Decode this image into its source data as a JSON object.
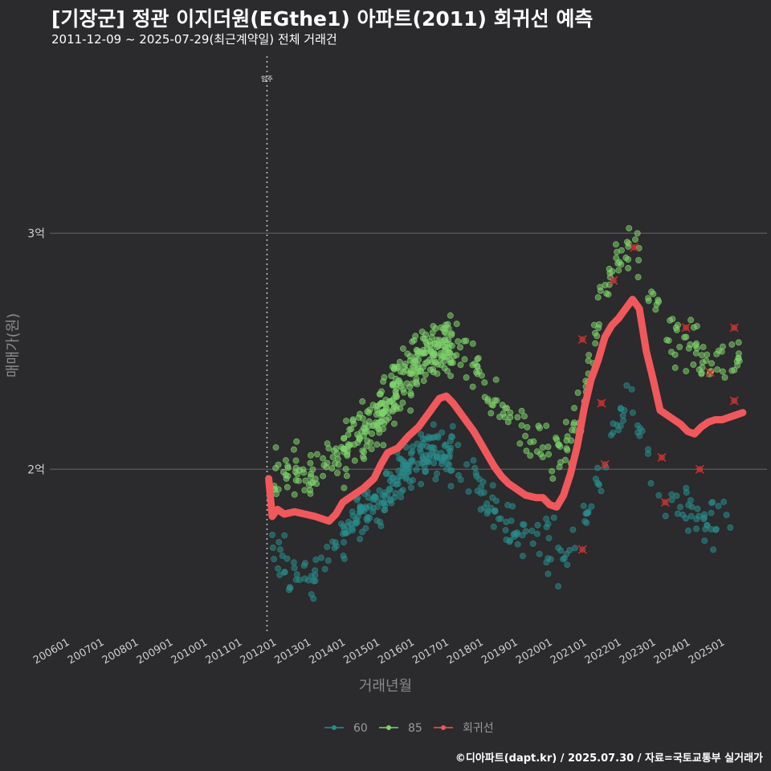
{
  "header": {
    "title": "[기장군] 정관 이지더원(EGthe1) 아파트(2011) 회귀선 예측",
    "subtitle": "2011-12-09 ~ 2025-07-29(최근계약일) 전체 거래건"
  },
  "caption": "©디아파트(dapt.kr) / 2025.07.30 / 자료=국토교통부 실거래가",
  "chart_data": {
    "type": "scatter",
    "title": "[기장군] 정관 이지더원(EGthe1) 아파트(2011) 회귀선 예측",
    "xlabel": "거래년월",
    "ylabel": "매매가(원)",
    "xlim": [
      2005.5,
      2026.3
    ],
    "ylim": [
      13.0,
      37.5
    ],
    "y_unit": "천만원",
    "y_ticks": [
      {
        "value": 20,
        "label": "2억"
      },
      {
        "value": 30,
        "label": "3억"
      }
    ],
    "x_ticks": [
      {
        "value": 2006,
        "label": "200601"
      },
      {
        "value": 2007,
        "label": "200701"
      },
      {
        "value": 2008,
        "label": "200801"
      },
      {
        "value": 2009,
        "label": "200901"
      },
      {
        "value": 2010,
        "label": "201001"
      },
      {
        "value": 2011,
        "label": "201101"
      },
      {
        "value": 2012,
        "label": "201201"
      },
      {
        "value": 2013,
        "label": "201301"
      },
      {
        "value": 2014,
        "label": "201401"
      },
      {
        "value": 2015,
        "label": "201501"
      },
      {
        "value": 2016,
        "label": "201601"
      },
      {
        "value": 2017,
        "label": "201701"
      },
      {
        "value": 2018,
        "label": "201801"
      },
      {
        "value": 2019,
        "label": "201901"
      },
      {
        "value": 2020,
        "label": "202001"
      },
      {
        "value": 2021,
        "label": "202101"
      },
      {
        "value": 2022,
        "label": "202201"
      },
      {
        "value": 2023,
        "label": "202301"
      },
      {
        "value": 2024,
        "label": "202401"
      },
      {
        "value": 2025,
        "label": "202501"
      }
    ],
    "vline": {
      "x": 2011.8,
      "label": "입주"
    },
    "legend": [
      {
        "name": "60",
        "color": "#2a8c8c"
      },
      {
        "name": "85",
        "color": "#7fd36e"
      },
      {
        "name": "회귀선",
        "color": "#f0585c"
      }
    ],
    "series": [
      {
        "name": "60",
        "color": "#2a8c8c",
        "trend": [
          [
            2011.95,
            16.5
          ],
          [
            2012.5,
            15.8
          ],
          [
            2013.2,
            15.6
          ],
          [
            2013.8,
            16.8
          ],
          [
            2014.3,
            17.8
          ],
          [
            2015.0,
            18.5
          ],
          [
            2015.6,
            19.5
          ],
          [
            2016.2,
            20.4
          ],
          [
            2016.6,
            20.8
          ],
          [
            2017.0,
            20.6
          ],
          [
            2017.5,
            20.0
          ],
          [
            2018.0,
            19.2
          ],
          [
            2018.5,
            18.0
          ],
          [
            2019.0,
            17.2
          ],
          [
            2019.5,
            17.0
          ],
          [
            2020.0,
            16.6
          ],
          [
            2020.4,
            16.3
          ],
          [
            2020.8,
            17.0
          ],
          [
            2021.2,
            18.5
          ],
          [
            2021.6,
            20.5
          ],
          [
            2022.0,
            22.0
          ],
          [
            2022.3,
            23.5
          ],
          [
            2022.6,
            22.0
          ],
          [
            2023.0,
            19.8
          ],
          [
            2023.5,
            18.5
          ],
          [
            2024.0,
            18.2
          ],
          [
            2024.5,
            17.8
          ],
          [
            2025.0,
            17.8
          ],
          [
            2025.5,
            17.5
          ]
        ],
        "spread": 1.6,
        "count": 380
      },
      {
        "name": "85",
        "color": "#7fd36e",
        "trend": [
          [
            2011.95,
            19.8
          ],
          [
            2012.5,
            20.0
          ],
          [
            2013.2,
            19.8
          ],
          [
            2013.8,
            20.4
          ],
          [
            2014.3,
            21.3
          ],
          [
            2014.8,
            22.0
          ],
          [
            2015.3,
            22.8
          ],
          [
            2015.8,
            24.0
          ],
          [
            2016.3,
            24.8
          ],
          [
            2016.8,
            25.2
          ],
          [
            2017.3,
            25.0
          ],
          [
            2017.8,
            24.4
          ],
          [
            2018.3,
            23.0
          ],
          [
            2018.8,
            22.0
          ],
          [
            2019.3,
            21.5
          ],
          [
            2019.8,
            21.0
          ],
          [
            2020.2,
            20.6
          ],
          [
            2020.6,
            21.5
          ],
          [
            2021.0,
            23.5
          ],
          [
            2021.4,
            26.5
          ],
          [
            2021.8,
            28.5
          ],
          [
            2022.2,
            29.5
          ],
          [
            2022.6,
            29.2
          ],
          [
            2023.0,
            27.0
          ],
          [
            2023.5,
            25.8
          ],
          [
            2024.0,
            25.3
          ],
          [
            2024.5,
            24.6
          ],
          [
            2025.0,
            24.8
          ],
          [
            2025.5,
            24.5
          ]
        ],
        "spread": 1.7,
        "count": 520
      },
      {
        "name": "회귀선",
        "color": "#f0585c",
        "type": "line",
        "points": [
          [
            2011.85,
            19.6
          ],
          [
            2011.95,
            18.0
          ],
          [
            2012.1,
            18.3
          ],
          [
            2012.3,
            18.1
          ],
          [
            2012.6,
            18.2
          ],
          [
            2012.9,
            18.1
          ],
          [
            2013.2,
            18.0
          ],
          [
            2013.4,
            17.9
          ],
          [
            2013.6,
            17.8
          ],
          [
            2013.8,
            18.1
          ],
          [
            2014.0,
            18.6
          ],
          [
            2014.3,
            18.9
          ],
          [
            2014.6,
            19.2
          ],
          [
            2014.9,
            19.6
          ],
          [
            2015.1,
            20.2
          ],
          [
            2015.3,
            20.7
          ],
          [
            2015.6,
            20.9
          ],
          [
            2015.9,
            21.4
          ],
          [
            2016.2,
            21.8
          ],
          [
            2016.5,
            22.4
          ],
          [
            2016.8,
            23.0
          ],
          [
            2017.0,
            23.1
          ],
          [
            2017.2,
            22.8
          ],
          [
            2017.5,
            22.2
          ],
          [
            2017.8,
            21.6
          ],
          [
            2018.0,
            21.1
          ],
          [
            2018.2,
            20.6
          ],
          [
            2018.4,
            20.1
          ],
          [
            2018.6,
            19.7
          ],
          [
            2018.8,
            19.4
          ],
          [
            2019.0,
            19.2
          ],
          [
            2019.3,
            18.9
          ],
          [
            2019.6,
            18.8
          ],
          [
            2019.8,
            18.8
          ],
          [
            2020.0,
            18.5
          ],
          [
            2020.2,
            18.4
          ],
          [
            2020.4,
            18.9
          ],
          [
            2020.6,
            19.8
          ],
          [
            2020.8,
            21.0
          ],
          [
            2021.0,
            22.6
          ],
          [
            2021.2,
            23.8
          ],
          [
            2021.4,
            24.6
          ],
          [
            2021.6,
            25.6
          ],
          [
            2021.8,
            26.1
          ],
          [
            2022.0,
            26.4
          ],
          [
            2022.2,
            26.8
          ],
          [
            2022.4,
            27.2
          ],
          [
            2022.6,
            26.8
          ],
          [
            2022.8,
            25.0
          ],
          [
            2023.0,
            23.8
          ],
          [
            2023.2,
            22.5
          ],
          [
            2023.4,
            22.3
          ],
          [
            2023.6,
            22.1
          ],
          [
            2023.8,
            21.9
          ],
          [
            2024.0,
            21.6
          ],
          [
            2024.2,
            21.5
          ],
          [
            2024.4,
            21.8
          ],
          [
            2024.6,
            22.0
          ],
          [
            2024.8,
            22.1
          ],
          [
            2025.0,
            22.1
          ],
          [
            2025.2,
            22.2
          ],
          [
            2025.4,
            22.3
          ],
          [
            2025.6,
            22.4
          ]
        ]
      }
    ],
    "x_marks": [
      [
        2020.95,
        16.6
      ],
      [
        2020.95,
        25.5
      ],
      [
        2021.5,
        22.8
      ],
      [
        2021.6,
        20.2
      ],
      [
        2021.85,
        28.0
      ],
      [
        2022.45,
        29.4
      ],
      [
        2023.25,
        20.5
      ],
      [
        2023.35,
        18.6
      ],
      [
        2023.95,
        26.0
      ],
      [
        2024.35,
        20.0
      ],
      [
        2024.65,
        24.1
      ],
      [
        2025.35,
        26.0
      ],
      [
        2025.35,
        22.9
      ]
    ]
  }
}
